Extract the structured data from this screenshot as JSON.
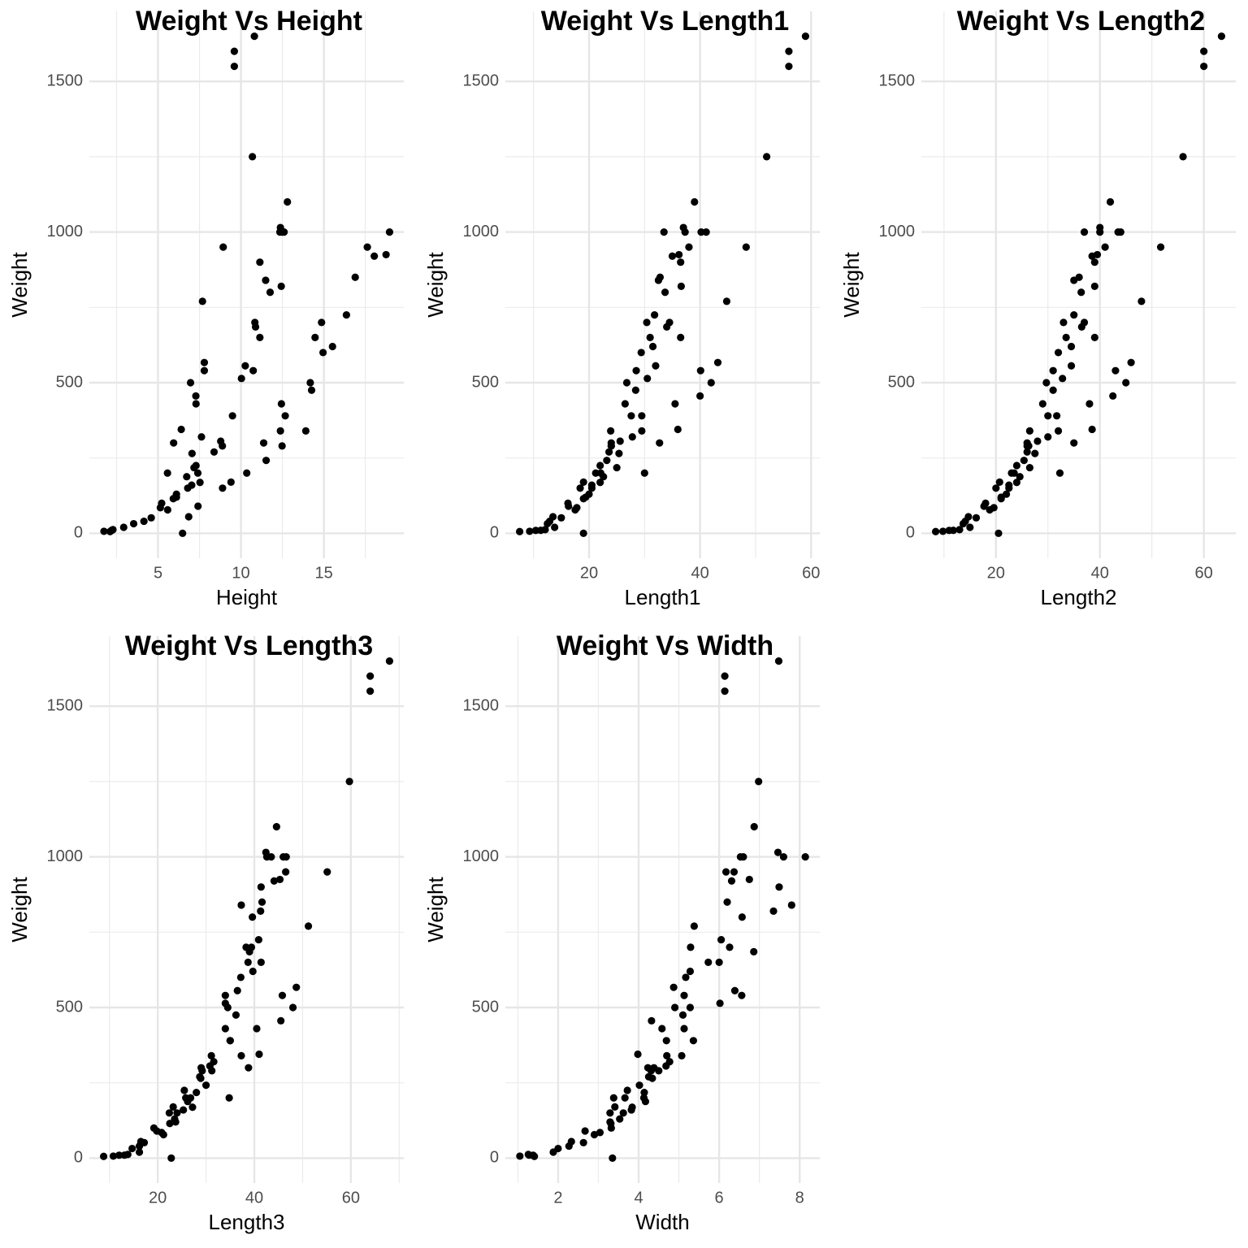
{
  "chart_data": [
    {
      "type": "scatter",
      "title": "Weight Vs Height",
      "x_label": "Height",
      "y_label": "Weight",
      "color": "#000000",
      "grid": true,
      "xlim": [
        0.86,
        19.82
      ],
      "ylim": [
        -82.5,
        1732.5
      ],
      "xticks": [
        5,
        10,
        15
      ],
      "yticks": [
        0,
        500,
        1000,
        1500
      ],
      "x": [
        11.52,
        12.48,
        12.38,
        12.44,
        14.18,
        12.67,
        14.26,
        13.91,
        14.95,
        14.86,
        14.47,
        15.52,
        16.36,
        16.89,
        18.96,
        18.04,
        18.75,
        17.62,
        4.15,
        5.58,
        6.48,
        6.11,
        7.03,
        7.53,
        7.4,
        8.88,
        9.49,
        8.38,
        8.78,
        10.74,
        11.76,
        12.35,
        6.85,
        7.41,
        8.89,
        9.4,
        10.35,
        11.37,
        2.11,
        3.53,
        4.59,
        5.22,
        5.14,
        5.92,
        6.11,
        6.79,
        7.29,
        6.73,
        7.17,
        7.05,
        7.62,
        10.03,
        10.26,
        11.49,
        10.88,
        10.84,
        11.14,
        11.14,
        12.43,
        12.38,
        12.8,
        12.6,
        12.49,
        5.57,
        5.94,
        7.29,
        6.4,
        7.28,
        7.79,
        6.96,
        7.79,
        7.68,
        8.93,
        10.69,
        9.6,
        9.6,
        10.81,
        1.74,
        2.2,
        2.21,
        2.28,
        2.93
      ],
      "y": [
        242,
        290,
        340,
        430,
        500,
        390,
        475,
        340,
        600,
        700,
        650,
        620,
        725,
        850,
        1000,
        920,
        925,
        950,
        40,
        78,
        0,
        120,
        160,
        169,
        200,
        290,
        390,
        270,
        306,
        540,
        800,
        1000,
        55,
        90,
        150,
        170,
        200,
        300,
        5.9,
        32,
        51.5,
        100,
        85,
        115,
        130,
        150,
        225,
        188,
        218,
        265,
        320,
        514,
        556,
        840,
        685,
        700,
        900,
        650,
        820,
        1015,
        1100,
        1000,
        1000,
        200,
        300,
        430,
        345,
        456,
        540,
        500,
        567,
        770,
        950,
        1250,
        1600,
        1550,
        1650,
        6.7,
        9.7,
        10,
        12.2,
        19.9
      ]
    },
    {
      "type": "scatter",
      "title": "Weight Vs Length1",
      "x_label": "Length1",
      "y_label": "Weight",
      "color": "#000000",
      "grid": true,
      "xlim": [
        4.925,
        61.575
      ],
      "ylim": [
        -82.5,
        1732.5
      ],
      "xticks": [
        20,
        40,
        60
      ],
      "yticks": [
        0,
        500,
        1000,
        1500
      ],
      "x": [
        23.2,
        24,
        23.9,
        26.5,
        26.8,
        27.6,
        28.4,
        29.5,
        29.4,
        30.4,
        31,
        31.5,
        31.8,
        32.8,
        33.5,
        35,
        36.2,
        38,
        12.9,
        17.5,
        19,
        19.4,
        20.5,
        22,
        22.1,
        24,
        29.5,
        23.6,
        25.6,
        28.5,
        33.7,
        37.3,
        13.5,
        16.3,
        18.4,
        19,
        21.2,
        24,
        7.5,
        12.5,
        15,
        16.2,
        17.8,
        19,
        20,
        20.5,
        22,
        22.6,
        25,
        25.4,
        27.8,
        30.5,
        32,
        32.5,
        34,
        34.5,
        36.5,
        36.5,
        36.6,
        37,
        39,
        40.2,
        41.1,
        30,
        32.7,
        35.5,
        36,
        40,
        40.1,
        42,
        43.2,
        44.8,
        48.3,
        52,
        56,
        56,
        59,
        9.3,
        10.4,
        11.3,
        12.1,
        13.8
      ],
      "y": [
        242,
        290,
        340,
        430,
        500,
        390,
        475,
        340,
        600,
        700,
        650,
        620,
        725,
        850,
        1000,
        920,
        925,
        950,
        40,
        78,
        0,
        120,
        160,
        169,
        200,
        290,
        390,
        270,
        306,
        540,
        800,
        1000,
        55,
        90,
        150,
        170,
        200,
        300,
        5.9,
        32,
        51.5,
        100,
        85,
        115,
        130,
        150,
        225,
        188,
        218,
        265,
        320,
        514,
        556,
        840,
        685,
        700,
        900,
        650,
        820,
        1015,
        1100,
        1000,
        1000,
        200,
        300,
        430,
        345,
        456,
        540,
        500,
        567,
        770,
        950,
        1250,
        1600,
        1550,
        1650,
        6.7,
        9.7,
        10,
        12.2,
        19.9
      ]
    },
    {
      "type": "scatter",
      "title": "Weight Vs Length2",
      "x_label": "Length2",
      "y_label": "Weight",
      "color": "#000000",
      "grid": true,
      "xlim": [
        5.65,
        66.15
      ],
      "ylim": [
        -82.5,
        1732.5
      ],
      "xticks": [
        20,
        40,
        60
      ],
      "yticks": [
        0,
        500,
        1000,
        1500
      ],
      "x": [
        25.4,
        26.3,
        26.5,
        29,
        29.7,
        30,
        31,
        32,
        32,
        33,
        33.5,
        34.5,
        35,
        36,
        37,
        38.5,
        39.5,
        41,
        14.1,
        18.8,
        20.5,
        21,
        22.5,
        24,
        23.5,
        26,
        31.7,
        26,
        28,
        31,
        36.4,
        40,
        14.7,
        17.7,
        20,
        20.7,
        23,
        26,
        8.4,
        13.7,
        16.2,
        18,
        19.6,
        21,
        22,
        22.5,
        24,
        24.6,
        26.5,
        27.5,
        30,
        32.8,
        34.5,
        35,
        36.5,
        37,
        39,
        39,
        39,
        40,
        42,
        43.5,
        44,
        32.3,
        35,
        38,
        38.5,
        42.5,
        43,
        45,
        46,
        48,
        51.7,
        56,
        60,
        60,
        63.4,
        9.8,
        11,
        11.8,
        13,
        15
      ],
      "y": [
        242,
        290,
        340,
        430,
        500,
        390,
        475,
        340,
        600,
        700,
        650,
        620,
        725,
        850,
        1000,
        920,
        925,
        950,
        40,
        78,
        0,
        120,
        160,
        169,
        200,
        290,
        390,
        270,
        306,
        540,
        800,
        1000,
        55,
        90,
        150,
        170,
        200,
        300,
        5.9,
        32,
        51.5,
        100,
        85,
        115,
        130,
        150,
        225,
        188,
        218,
        265,
        320,
        514,
        556,
        840,
        685,
        700,
        900,
        650,
        820,
        1015,
        1100,
        1000,
        1000,
        200,
        300,
        430,
        345,
        456,
        540,
        500,
        567,
        770,
        950,
        1250,
        1600,
        1550,
        1650,
        6.7,
        9.7,
        10,
        12.2,
        19.9
      ]
    },
    {
      "type": "scatter",
      "title": "Weight Vs Length3",
      "x_label": "Length3",
      "y_label": "Weight",
      "color": "#000000",
      "grid": true,
      "xlim": [
        5.84,
        70.96
      ],
      "ylim": [
        -82.5,
        1732.5
      ],
      "xticks": [
        20,
        40,
        60
      ],
      "yticks": [
        0,
        500,
        1000,
        1500
      ],
      "x": [
        30,
        31.2,
        31.1,
        34,
        34.5,
        35,
        36.2,
        37.3,
        37.2,
        38.3,
        38.7,
        39.7,
        40.9,
        41.6,
        42.6,
        44.1,
        45.3,
        46.5,
        16.2,
        21.2,
        22.8,
        23.7,
        25.3,
        27.2,
        26.8,
        29.2,
        35,
        28.7,
        30.8,
        34,
        39.6,
        43.5,
        16.5,
        19.8,
        22.4,
        23.2,
        25.8,
        29,
        8.8,
        14.7,
        17.2,
        19.2,
        20.8,
        22.5,
        23.5,
        24,
        25.5,
        26.2,
        28,
        28.9,
        31.6,
        34,
        36.5,
        37.3,
        39,
        39.4,
        41.4,
        41.4,
        41.3,
        42.4,
        44.6,
        46,
        46.6,
        34.8,
        38.8,
        40.5,
        41,
        45.5,
        45.8,
        48,
        48.7,
        51.2,
        55.1,
        59.7,
        64,
        64,
        68,
        10.8,
        12,
        13.1,
        13.8,
        16.2
      ],
      "y": [
        242,
        290,
        340,
        430,
        500,
        390,
        475,
        340,
        600,
        700,
        650,
        620,
        725,
        850,
        1000,
        920,
        925,
        950,
        40,
        78,
        0,
        120,
        160,
        169,
        200,
        290,
        390,
        270,
        306,
        540,
        800,
        1000,
        55,
        90,
        150,
        170,
        200,
        300,
        5.9,
        32,
        51.5,
        100,
        85,
        115,
        130,
        150,
        225,
        188,
        218,
        265,
        320,
        514,
        556,
        840,
        685,
        700,
        900,
        650,
        820,
        1015,
        1100,
        1000,
        1000,
        200,
        300,
        430,
        345,
        456,
        540,
        500,
        567,
        770,
        950,
        1250,
        1600,
        1550,
        1650,
        6.7,
        9.7,
        10,
        12.2,
        19.9
      ]
    },
    {
      "type": "scatter",
      "title": "Weight Vs Width",
      "x_label": "Width",
      "y_label": "Weight",
      "color": "#000000",
      "grid": true,
      "xlim": [
        0.69,
        8.5
      ],
      "ylim": [
        -82.5,
        1732.5
      ],
      "xticks": [
        2,
        4,
        6,
        8
      ],
      "yticks": [
        0,
        500,
        1000,
        1500
      ],
      "x": [
        4.02,
        4.31,
        4.7,
        5.13,
        5.28,
        4.69,
        5.1,
        5.07,
        5.17,
        5.29,
        5.73,
        5.28,
        6.05,
        6.2,
        6.6,
        6.31,
        6.75,
        6.37,
        2.27,
        2.9,
        3.35,
        3.29,
        3.82,
        3.84,
        4.13,
        4.5,
        5.36,
        4.25,
        4.68,
        6.56,
        6.57,
        6.53,
        2.33,
        2.67,
        3.29,
        3.41,
        3.66,
        4.23,
        1.41,
        2,
        2.63,
        3.32,
        3.04,
        3.31,
        3.53,
        3.62,
        3.72,
        4.17,
        4.14,
        4.34,
        4.77,
        6.02,
        6.39,
        7.8,
        6.86,
        6.26,
        7.49,
        6,
        7.35,
        7.46,
        6.87,
        8.14,
        7.6,
        3.38,
        4.38,
        4.58,
        3.98,
        4.32,
        5.13,
        4.9,
        4.87,
        5.38,
        6.17,
        6.98,
        6.14,
        6.14,
        7.48,
        1.05,
        1.38,
        1.28,
        1.26,
        1.88
      ],
      "y": [
        242,
        290,
        340,
        430,
        500,
        390,
        475,
        340,
        600,
        700,
        650,
        620,
        725,
        850,
        1000,
        920,
        925,
        950,
        40,
        78,
        0,
        120,
        160,
        169,
        200,
        290,
        390,
        270,
        306,
        540,
        800,
        1000,
        55,
        90,
        150,
        170,
        200,
        300,
        5.9,
        32,
        51.5,
        100,
        85,
        115,
        130,
        150,
        225,
        188,
        218,
        265,
        320,
        514,
        556,
        840,
        685,
        700,
        900,
        650,
        820,
        1015,
        1100,
        1000,
        1000,
        200,
        300,
        430,
        345,
        456,
        540,
        500,
        567,
        770,
        950,
        1250,
        1600,
        1550,
        1650,
        6.7,
        9.7,
        10,
        12.2,
        19.9
      ]
    }
  ]
}
